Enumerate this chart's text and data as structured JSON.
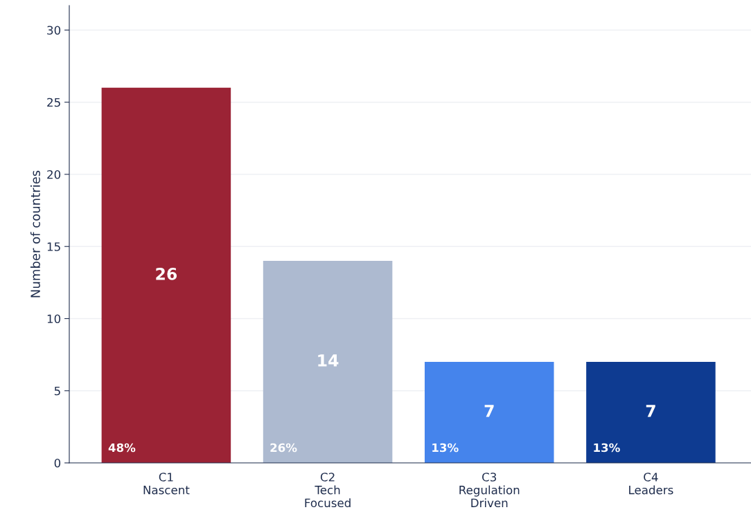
{
  "chart_data": {
    "type": "bar",
    "ylabel": "Number of countries",
    "categories": [
      "C1\nNascent",
      "C2\nTech\nFocused",
      "C3\nRegulation\nDriven",
      "C4\nLeaders"
    ],
    "values": [
      26,
      14,
      7,
      7
    ],
    "colors": [
      "#9b2335",
      "#adbad0",
      "#4584ec",
      "#0e3b91"
    ],
    "ylim": [
      0,
      31.7
    ],
    "yticks": [
      0,
      5,
      10,
      15,
      20,
      25,
      30
    ],
    "grid": "y",
    "data_labels": true,
    "annotations": [
      {
        "text": "48%",
        "x": "C1\nNascent",
        "y": 0
      },
      {
        "text": "26%",
        "x": "C2\nTech\nFocused",
        "y": 0
      },
      {
        "text": "13%",
        "x": "C3\nRegulation\nDriven",
        "y": 0
      },
      {
        "text": "13%",
        "x": "C4\nLeaders",
        "y": 0
      }
    ]
  }
}
